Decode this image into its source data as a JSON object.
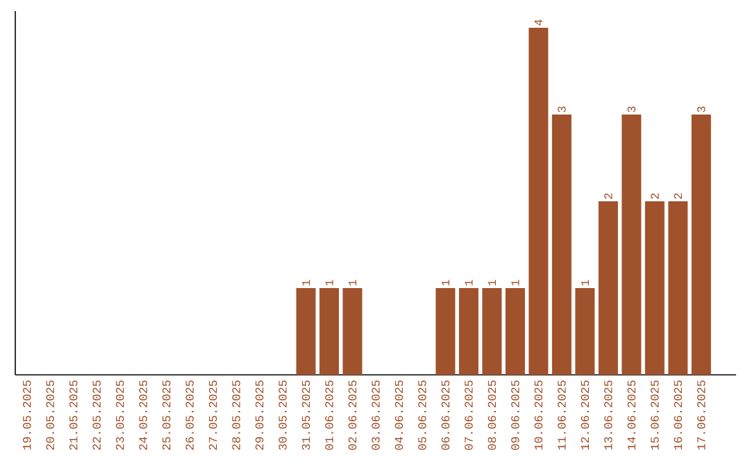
{
  "chart_data": {
    "type": "bar",
    "categories": [
      "19.05.2025",
      "20.05.2025",
      "21.05.2025",
      "22.05.2025",
      "23.05.2025",
      "24.05.2025",
      "25.05.2025",
      "26.05.2025",
      "27.05.2025",
      "28.05.2025",
      "29.05.2025",
      "30.05.2025",
      "31.05.2025",
      "01.06.2025",
      "02.06.2025",
      "03.06.2025",
      "04.06.2025",
      "05.06.2025",
      "06.06.2025",
      "07.06.2025",
      "08.06.2025",
      "09.06.2025",
      "10.06.2025",
      "11.06.2025",
      "12.06.2025",
      "13.06.2025",
      "14.06.2025",
      "15.06.2025",
      "16.06.2025",
      "17.06.2025"
    ],
    "values": [
      null,
      null,
      null,
      null,
      null,
      null,
      null,
      null,
      null,
      null,
      null,
      null,
      1,
      1,
      1,
      null,
      null,
      null,
      1,
      1,
      1,
      1,
      4,
      3,
      1,
      2,
      3,
      2,
      2,
      3
    ],
    "value_labels": [
      null,
      null,
      null,
      null,
      null,
      null,
      null,
      null,
      null,
      null,
      null,
      null,
      "1",
      "1",
      "1",
      null,
      null,
      null,
      "1",
      "1",
      "1",
      "1",
      "4",
      "3",
      "1",
      "2",
      "3",
      "2",
      "2",
      "3"
    ],
    "color": "#a0522d"
  }
}
